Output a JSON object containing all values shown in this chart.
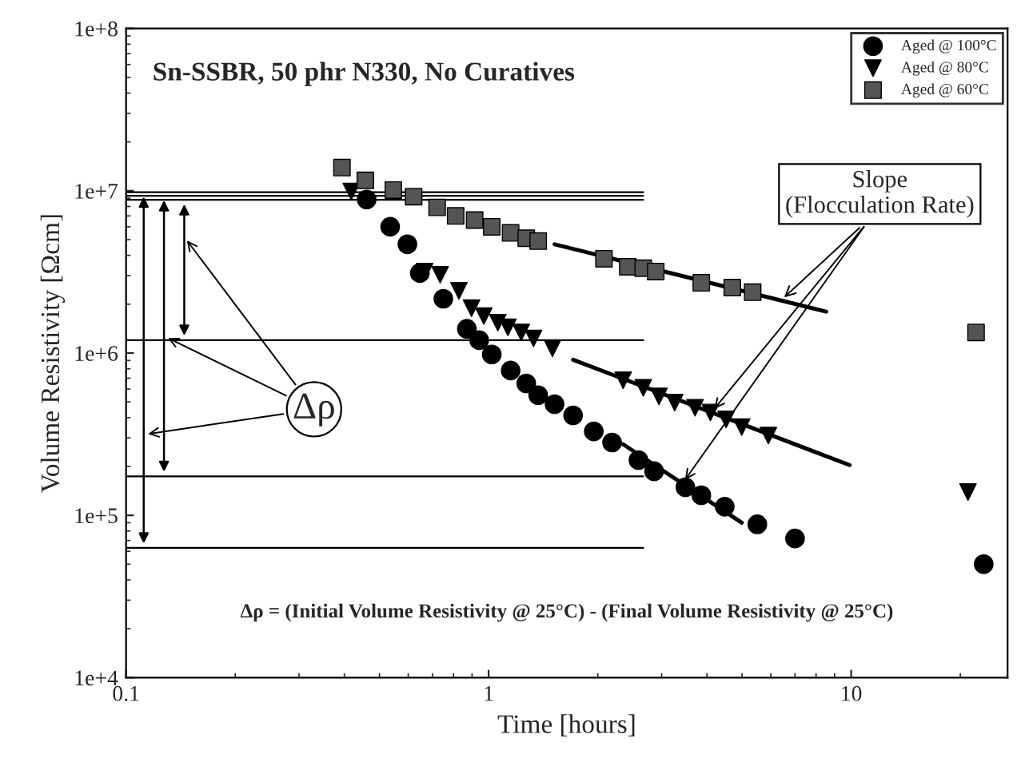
{
  "chart_data": {
    "type": "scatter",
    "title": "Sn-SSBR, 50 phr N330, No Curatives",
    "xlabel": "Time [hours]",
    "ylabel": "Volume Resistivity [Ωcm]",
    "log": "xy",
    "xlim": [
      0.1,
      27
    ],
    "ylim": [
      10000,
      100000000
    ],
    "xticks": [
      0.1,
      1,
      10
    ],
    "yticks": [
      {
        "value": 10000,
        "label": "1e+4"
      },
      {
        "value": 100000,
        "label": "1e+5"
      },
      {
        "value": 1000000,
        "label": "1e+6"
      },
      {
        "value": 10000000,
        "label": "1e+7"
      },
      {
        "value": 100000000,
        "label": "1e+8"
      }
    ],
    "grid": false,
    "legend": "top right",
    "series": [
      {
        "name": "Aged @ 100°C",
        "color": "#000000",
        "marker": "circle",
        "x": [
          0.461,
          0.535,
          0.597,
          0.646,
          0.75,
          0.871,
          0.942,
          1.02,
          1.15,
          1.27,
          1.37,
          1.52,
          1.71,
          1.95,
          2.19,
          2.59,
          2.86,
          3.49,
          3.86,
          4.48,
          5.51,
          7.0,
          23.2
        ],
        "values": [
          8830000,
          6000000,
          4680000,
          3110000,
          2160000,
          1410000,
          1200000,
          980000,
          780000,
          650000,
          550000,
          484000,
          413000,
          329000,
          281000,
          219000,
          187000,
          149000,
          133000,
          113000,
          88000,
          72000,
          50000
        ]
      },
      {
        "name": "Aged @ 80°C",
        "color": "#000000",
        "marker": "triangle",
        "x": [
          0.418,
          0.666,
          0.735,
          0.828,
          0.897,
          0.97,
          1.06,
          1.13,
          1.23,
          1.33,
          1.5,
          2.35,
          2.67,
          2.95,
          3.26,
          3.71,
          4.09,
          4.52,
          4.99,
          5.91,
          21.0
        ],
        "values": [
          9900000,
          3180000,
          3040000,
          2420000,
          1890000,
          1690000,
          1540000,
          1440000,
          1340000,
          1230000,
          1070000,
          680000,
          610000,
          540000,
          495000,
          460000,
          430000,
          390000,
          350000,
          310000,
          139000
        ]
      },
      {
        "name": "Aged @ 60°C",
        "color": "#555555",
        "marker": "square",
        "x": [
          0.394,
          0.457,
          0.546,
          0.621,
          0.721,
          0.811,
          0.915,
          1.02,
          1.15,
          1.27,
          1.37,
          2.08,
          2.42,
          2.67,
          2.89,
          3.86,
          4.7,
          5.35,
          22.1
        ],
        "values": [
          13900000,
          11600000,
          10100000,
          9200000,
          7900000,
          7000000,
          6600000,
          6000000,
          5500000,
          5100000,
          4900000,
          3810000,
          3400000,
          3330000,
          3180000,
          2710000,
          2530000,
          2370000,
          1340000
        ]
      },
      {
        "type": "line",
        "color": "#000000",
        "marker": "none",
        "x": [
          1.52,
          8.53
        ],
        "values": [
          4680000,
          1800000
        ]
      },
      {
        "type": "line",
        "color": "#000000",
        "marker": "none",
        "x": [
          1.71,
          9.9
        ],
        "values": [
          910000,
          204000
        ]
      },
      {
        "type": "line",
        "color": "#000000",
        "marker": "none",
        "x": [
          2.35,
          4.99
        ],
        "values": [
          274000,
          90000
        ]
      },
      {
        "type": "line",
        "color": "#000000",
        "marker": "none",
        "x": [
          0.1,
          2.67
        ],
        "values": [
          9800000,
          9800000
        ]
      },
      {
        "type": "line",
        "color": "#000000",
        "marker": "none",
        "x": [
          0.1,
          2.67
        ],
        "values": [
          9300000,
          9300000
        ]
      },
      {
        "type": "line",
        "color": "#000000",
        "marker": "none",
        "x": [
          0.1,
          2.67
        ],
        "values": [
          8800000,
          8800000
        ]
      },
      {
        "type": "line",
        "color": "#000000",
        "marker": "none",
        "x": [
          0.1,
          2.67
        ],
        "values": [
          63000,
          63000
        ]
      },
      {
        "type": "line",
        "color": "#000000",
        "marker": "none",
        "x": [
          0.1,
          2.67
        ],
        "values": [
          174000,
          174000
        ]
      },
      {
        "type": "line",
        "color": "#000000",
        "marker": "none",
        "x": [
          0.1,
          2.67
        ],
        "values": [
          1200000,
          1200000
        ]
      }
    ],
    "annotations": [
      {
        "text": "Δρ",
        "x": 0.33,
        "y": 450000
      },
      {
        "text": "Slope\n(Flocculation Rate)",
        "x": 6.4,
        "y": 2110000
      },
      "Δρ = (Initial Volume Resistivity @ 25°C) - (Final Volume Resistivity @ 25°C)"
    ]
  }
}
